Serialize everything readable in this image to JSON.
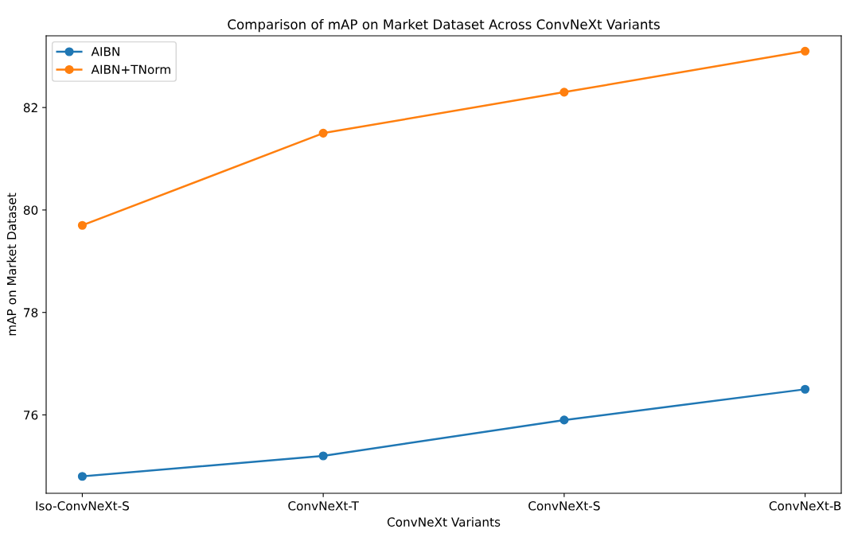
{
  "chart_data": {
    "type": "line",
    "title": "Comparison of mAP on Market Dataset Across ConvNeXt Variants",
    "xlabel": "ConvNeXt Variants",
    "ylabel": "mAP on Market Dataset",
    "categories": [
      "Iso-ConvNeXt-S",
      "ConvNeXt-T",
      "ConvNeXt-S",
      "ConvNeXt-B"
    ],
    "series": [
      {
        "name": "AIBN",
        "color": "#1f77b4",
        "values": [
          74.8,
          75.2,
          75.9,
          76.5
        ]
      },
      {
        "name": "AIBN+TNorm",
        "color": "#ff7f0e",
        "values": [
          79.7,
          81.5,
          82.3,
          83.1
        ]
      }
    ],
    "ylim": [
      74.47,
      83.4
    ],
    "yticks": [
      76,
      78,
      80,
      82
    ],
    "marker": "circle",
    "legend": "top left"
  }
}
